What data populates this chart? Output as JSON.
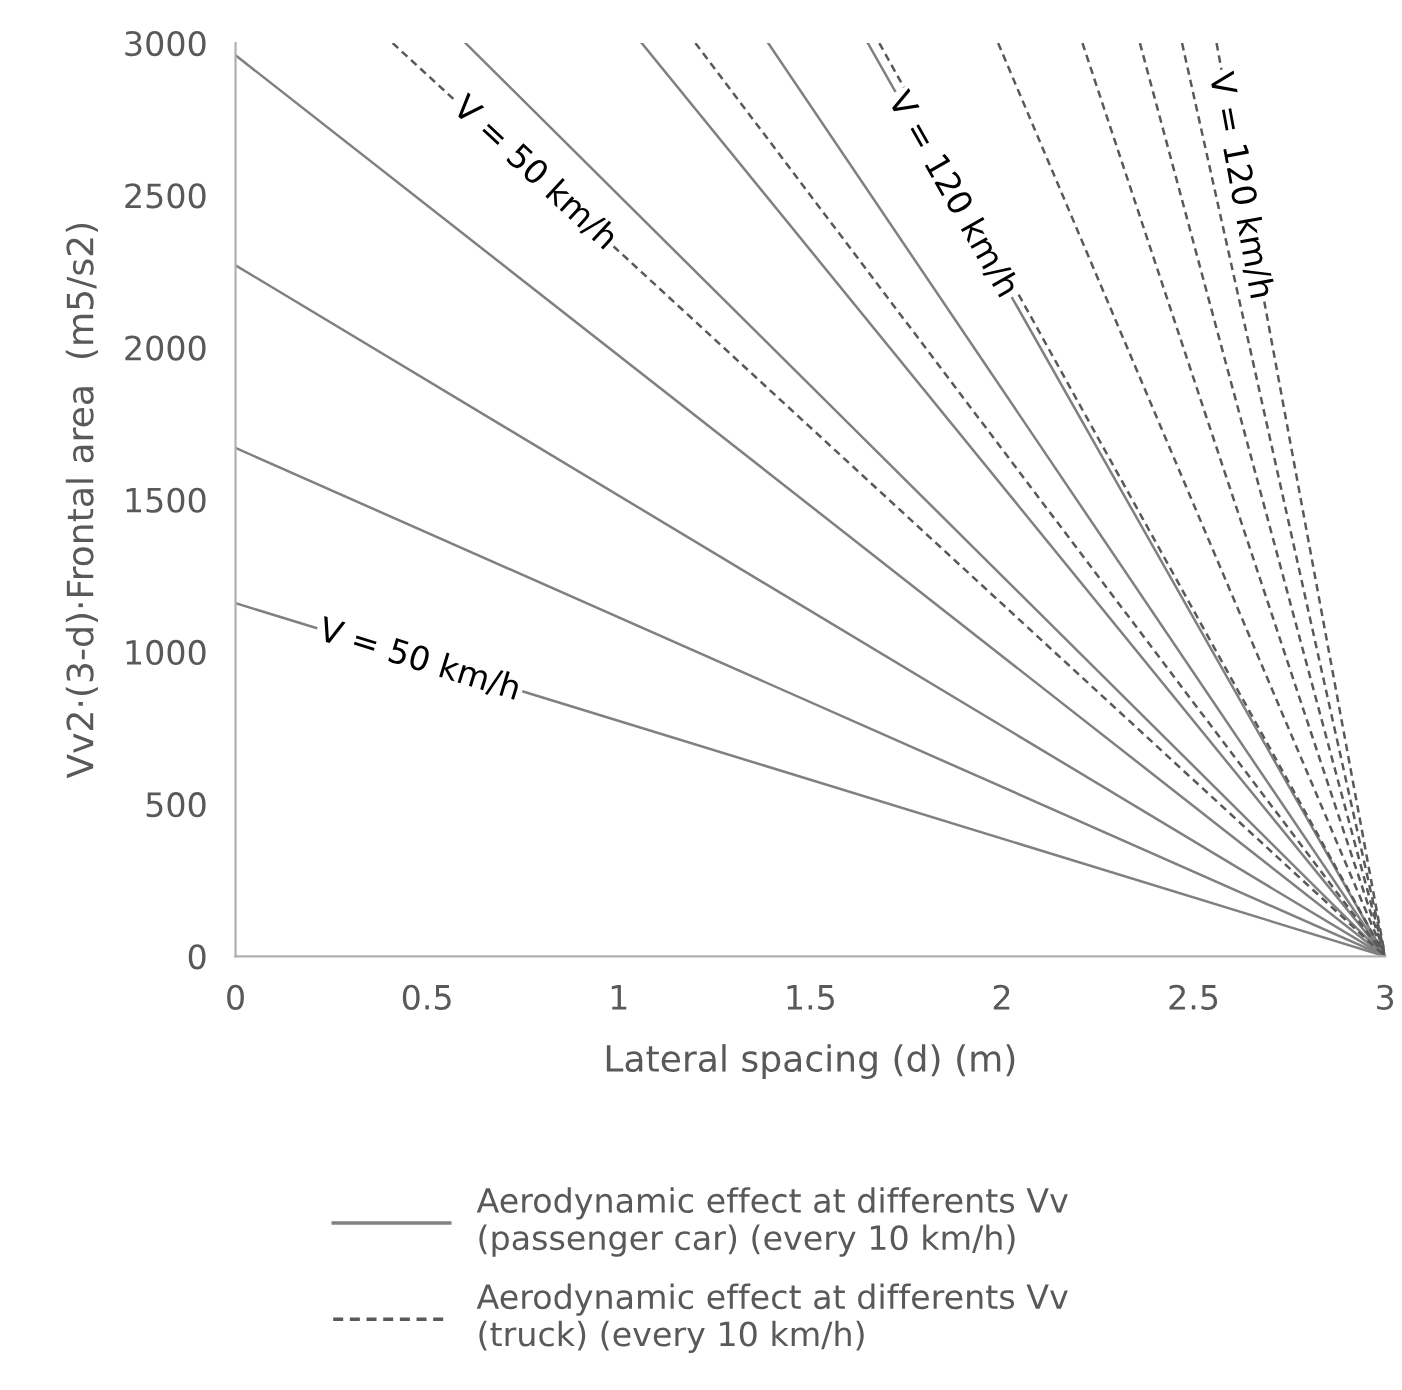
{
  "chart_data": {
    "type": "line",
    "xlabel": "Lateral spacing (d) (m)",
    "ylabel": "Vv2·(3-d)·Frontal area  (m5/s2)",
    "xlim": [
      0,
      3
    ],
    "xticks": [
      0,
      0.5,
      1,
      1.5,
      2,
      2.5,
      3
    ],
    "ylim": [
      0,
      3000
    ],
    "yticks": [
      0,
      500,
      1000,
      1500,
      2000,
      2500,
      3000
    ],
    "grid": false,
    "legend": "bottom",
    "marker": "none",
    "series": [
      {
        "name": "Aerodynamic effect at differents Vv\n(passenger car) (every 10 km/h)",
        "color": "#808080",
        "line_style": "solid",
        "x": [
          0,
          3
        ],
        "values": [
          1160,
          0
        ]
      },
      {
        "color": "#808080",
        "line_style": "solid",
        "x": [
          0,
          3
        ],
        "values": [
          1670,
          0
        ]
      },
      {
        "color": "#808080",
        "line_style": "solid",
        "x": [
          0,
          3
        ],
        "values": [
          2270,
          0
        ]
      },
      {
        "color": "#808080",
        "line_style": "solid",
        "x": [
          0,
          3
        ],
        "values": [
          2960,
          0
        ]
      },
      {
        "color": "#808080",
        "line_style": "solid",
        "x": [
          0.6,
          3
        ],
        "values": [
          3000,
          0
        ]
      },
      {
        "color": "#808080",
        "line_style": "solid",
        "x": [
          1.06,
          3
        ],
        "values": [
          3000,
          0
        ]
      },
      {
        "color": "#808080",
        "line_style": "solid",
        "x": [
          1.39,
          3
        ],
        "values": [
          3000,
          0
        ]
      },
      {
        "color": "#808080",
        "line_style": "solid",
        "x": [
          1.65,
          3
        ],
        "values": [
          3000,
          0
        ]
      },
      {
        "name": "Aerodynamic effect at differents Vv\n(truck) (every 10 km/h)",
        "color": "#595959",
        "line_style": "dashed",
        "x": [
          0.41,
          3
        ],
        "values": [
          3000,
          0
        ]
      },
      {
        "color": "#595959",
        "line_style": "dashed",
        "x": [
          1.2,
          3
        ],
        "values": [
          3000,
          0
        ]
      },
      {
        "color": "#595959",
        "line_style": "dashed",
        "x": [
          1.68,
          3
        ],
        "values": [
          3000,
          0
        ]
      },
      {
        "color": "#595959",
        "line_style": "dashed",
        "x": [
          1.99,
          3
        ],
        "values": [
          3000,
          0
        ]
      },
      {
        "color": "#595959",
        "line_style": "dashed",
        "x": [
          2.21,
          3
        ],
        "values": [
          3000,
          0
        ]
      },
      {
        "color": "#595959",
        "line_style": "dashed",
        "x": [
          2.36,
          3
        ],
        "values": [
          3000,
          0
        ]
      },
      {
        "color": "#595959",
        "line_style": "dashed",
        "x": [
          2.47,
          3
        ],
        "values": [
          3000,
          0
        ]
      },
      {
        "color": "#595959",
        "line_style": "dashed",
        "x": [
          2.56,
          3
        ],
        "values": [
          3000,
          0
        ]
      }
    ],
    "annotations": [
      {
        "text": "V = 50 km/h",
        "x": 0.48,
        "y": 970
      },
      {
        "text": "V = 50 km/h",
        "x": 0.78,
        "y": 2570
      },
      {
        "text": "V = 120 km/h",
        "x": 1.87,
        "y": 2500
      },
      {
        "text": "V = 120 km/h",
        "x": 2.62,
        "y": 2530
      }
    ]
  }
}
